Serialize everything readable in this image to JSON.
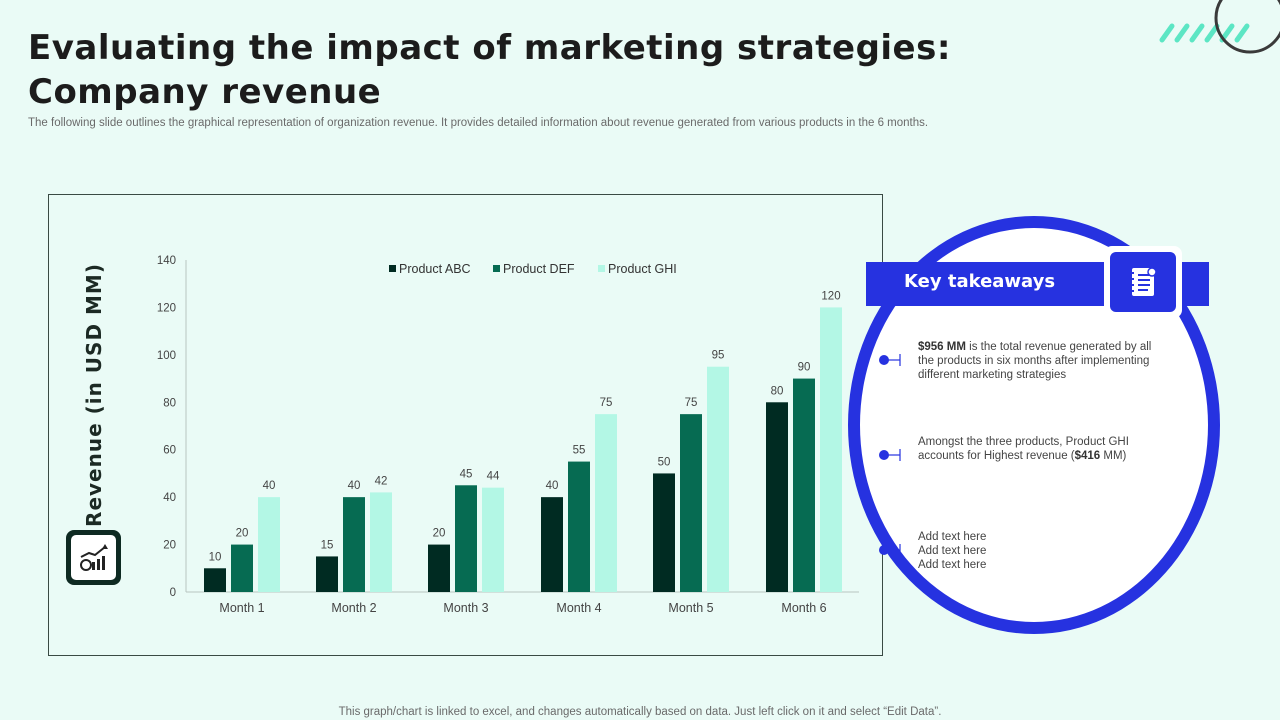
{
  "slide": {
    "title": "Evaluating the impact of marketing strategies: Company revenue",
    "subtitle": "The following slide outlines the graphical representation of organization revenue. It provides detailed information about revenue generated from various products in the 6 months.",
    "footer": "This graph/chart is linked to excel,  and changes automatically based on data. Just left click on it and select “Edit Data”."
  },
  "chart_data": {
    "type": "bar",
    "title": "",
    "xlabel": "",
    "ylabel": "Revenue (in USD MM)",
    "categories": [
      "Month 1",
      "Month 2",
      "Month 3",
      "Month 4",
      "Month 5",
      "Month 6"
    ],
    "series": [
      {
        "name": "Product ABC",
        "color": "#002b22",
        "values": [
          10,
          15,
          20,
          40,
          50,
          80
        ]
      },
      {
        "name": "Product DEF",
        "color": "#066b52",
        "values": [
          20,
          40,
          45,
          55,
          75,
          90
        ]
      },
      {
        "name": "Product GHI",
        "color": "#b3f7e5",
        "values": [
          40,
          42,
          44,
          75,
          95,
          120
        ]
      }
    ],
    "ylim": [
      0,
      140
    ],
    "yticks": [
      0,
      20,
      40,
      60,
      80,
      100,
      120,
      140
    ],
    "grid": false,
    "legend": "top-center"
  },
  "takeaways": {
    "heading": "Key takeaways",
    "item1": {
      "bold": "$956 MM",
      "text": " is the total revenue generated by all the products in six months after implementing different marketing strategies"
    },
    "item2": {
      "pre": "Amongst the three products, Product GHI accounts for Highest revenue (",
      "bold": "$416",
      "post": " MM)"
    },
    "item3": [
      "Add text here",
      "Add text here",
      "Add text here"
    ]
  },
  "colors": {
    "accent_blue": "#2632e0",
    "dark_green": "#002b22",
    "mint": "#b3f7e5",
    "background": "#eafbf6"
  },
  "icons": {
    "chart": "revenue-chart-icon",
    "notebook": "notebook-icon"
  }
}
